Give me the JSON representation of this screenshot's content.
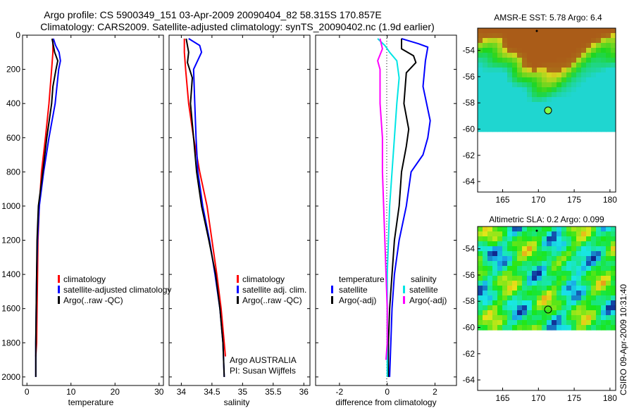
{
  "header": {
    "line1": "Argo profile: CS 5900349_151 03-Apr-2009 20090404_82 58.315S 170.857E",
    "line2": "Climatology: CARS2009. Satellite-adjusted climatology: synTS_20090402.nc (1.9d earlier)"
  },
  "credit": "CSIRO 09-Apr-2009 10:31:40",
  "colors": {
    "red": "#ff0000",
    "blue": "#0000ff",
    "black": "#000000",
    "cyan": "#00e5e5",
    "magenta": "#ff00ff"
  },
  "chart_data": [
    {
      "type": "line",
      "xlabel": "temperature",
      "xlim": [
        -1,
        31
      ],
      "ylim": [
        2050,
        0
      ],
      "xticks": [
        0,
        10,
        20,
        30
      ],
      "yticks": [
        0,
        200,
        400,
        600,
        800,
        1000,
        1200,
        1400,
        1600,
        1800,
        2000
      ],
      "legend": [
        "climatology",
        "satellite-adjusted climatology",
        "Argo(..raw -QC)"
      ],
      "series": [
        {
          "color": "red",
          "points": [
            [
              5.9,
              20
            ],
            [
              5.9,
              100
            ],
            [
              5.6,
              200
            ],
            [
              5.0,
              400
            ],
            [
              4.2,
              600
            ],
            [
              3.3,
              800
            ],
            [
              2.8,
              1000
            ],
            [
              2.5,
              1200
            ],
            [
              2.4,
              1400
            ],
            [
              2.3,
              1600
            ],
            [
              2.2,
              1800
            ],
            [
              2.0,
              1880
            ]
          ]
        },
        {
          "color": "blue",
          "points": [
            [
              6.0,
              20
            ],
            [
              6.5,
              60
            ],
            [
              7.3,
              100
            ],
            [
              7.6,
              150
            ],
            [
              7.2,
              200
            ],
            [
              6.4,
              400
            ],
            [
              5.0,
              600
            ],
            [
              3.8,
              800
            ],
            [
              2.8,
              1000
            ],
            [
              2.4,
              1200
            ],
            [
              2.2,
              1400
            ],
            [
              2.1,
              1600
            ],
            [
              2.0,
              1800
            ],
            [
              2.0,
              2000
            ]
          ]
        },
        {
          "color": "black",
          "points": [
            [
              5.7,
              20
            ],
            [
              6.3,
              100
            ],
            [
              7.0,
              150
            ],
            [
              6.6,
              200
            ],
            [
              5.9,
              300
            ],
            [
              5.6,
              400
            ],
            [
              4.5,
              600
            ],
            [
              3.6,
              800
            ],
            [
              2.6,
              1000
            ],
            [
              2.3,
              1200
            ],
            [
              2.2,
              1400
            ],
            [
              2.1,
              1600
            ],
            [
              2.0,
              1800
            ],
            [
              2.0,
              2000
            ]
          ]
        }
      ]
    },
    {
      "type": "line",
      "xlabel": "salinity",
      "xlim": [
        33.8,
        36.1
      ],
      "ylim": [
        2050,
        0
      ],
      "xticks": [
        34,
        34.5,
        35,
        35.5,
        36
      ],
      "legend": [
        "climatology",
        "satellite adj. clim.",
        "Argo(..raw -QC)"
      ],
      "annotation": [
        "Argo AUSTRALIA",
        "PI: Susan Wijffels"
      ],
      "series": [
        {
          "color": "red",
          "points": [
            [
              34.05,
              20
            ],
            [
              34.05,
              100
            ],
            [
              34.07,
              200
            ],
            [
              34.12,
              400
            ],
            [
              34.2,
              600
            ],
            [
              34.3,
              800
            ],
            [
              34.42,
              1000
            ],
            [
              34.5,
              1200
            ],
            [
              34.58,
              1400
            ],
            [
              34.65,
              1600
            ],
            [
              34.7,
              1800
            ],
            [
              34.72,
              1880
            ]
          ]
        },
        {
          "color": "blue",
          "points": [
            [
              34.12,
              20
            ],
            [
              34.3,
              60
            ],
            [
              34.33,
              100
            ],
            [
              34.2,
              200
            ],
            [
              34.22,
              400
            ],
            [
              34.24,
              600
            ],
            [
              34.27,
              800
            ],
            [
              34.35,
              1000
            ],
            [
              34.46,
              1200
            ],
            [
              34.55,
              1400
            ],
            [
              34.63,
              1600
            ],
            [
              34.68,
              1800
            ],
            [
              34.7,
              2000
            ]
          ]
        },
        {
          "color": "black",
          "points": [
            [
              34.08,
              20
            ],
            [
              34.12,
              100
            ],
            [
              34.1,
              160
            ],
            [
              34.18,
              250
            ],
            [
              34.15,
              400
            ],
            [
              34.2,
              600
            ],
            [
              34.25,
              800
            ],
            [
              34.33,
              1000
            ],
            [
              34.45,
              1200
            ],
            [
              34.56,
              1400
            ],
            [
              34.63,
              1600
            ],
            [
              34.68,
              1800
            ],
            [
              34.7,
              2000
            ]
          ]
        }
      ]
    },
    {
      "type": "line",
      "xlabel": "difference from climatology",
      "xlim": [
        -3,
        2.9
      ],
      "ylim": [
        2050,
        0
      ],
      "xticks": [
        -2,
        0,
        2
      ],
      "legend_title_left": "temperature",
      "legend_title_right": "salinity",
      "legend": [
        "satellite",
        "Argo(-adj)",
        "satellite",
        "Argo(-adj)"
      ],
      "series": [
        {
          "color": "blue",
          "points": [
            [
              0.6,
              20
            ],
            [
              1.3,
              50
            ],
            [
              1.7,
              70
            ],
            [
              1.6,
              150
            ],
            [
              1.5,
              300
            ],
            [
              1.8,
              500
            ],
            [
              1.7,
              600
            ],
            [
              1.5,
              700
            ],
            [
              1.0,
              800
            ],
            [
              0.8,
              1000
            ],
            [
              0.5,
              1200
            ],
            [
              0.3,
              1400
            ],
            [
              0.2,
              1600
            ],
            [
              0.15,
              1800
            ],
            [
              0.1,
              2000
            ]
          ]
        },
        {
          "color": "black",
          "points": [
            [
              0.6,
              20
            ],
            [
              0.6,
              80
            ],
            [
              1.1,
              120
            ],
            [
              1.2,
              160
            ],
            [
              0.8,
              220
            ],
            [
              0.7,
              400
            ],
            [
              0.9,
              550
            ],
            [
              0.8,
              650
            ],
            [
              0.6,
              800
            ],
            [
              0.5,
              1000
            ],
            [
              0.3,
              1200
            ],
            [
              0.2,
              1400
            ],
            [
              0.1,
              1600
            ],
            [
              0.05,
              1800
            ],
            [
              0.05,
              2000
            ]
          ]
        },
        {
          "color": "cyan",
          "points": [
            [
              -0.4,
              20
            ],
            [
              -0.1,
              60
            ],
            [
              0.1,
              100
            ],
            [
              0.4,
              150
            ],
            [
              0.5,
              250
            ],
            [
              0.4,
              400
            ],
            [
              0.3,
              600
            ],
            [
              0.2,
              800
            ],
            [
              0.1,
              1000
            ],
            [
              0.05,
              1200
            ],
            [
              0.0,
              1400
            ],
            [
              0.0,
              1600
            ],
            [
              0.0,
              1800
            ],
            [
              0.0,
              2000
            ]
          ]
        },
        {
          "color": "magenta",
          "points": [
            [
              -0.3,
              20
            ],
            [
              -0.2,
              80
            ],
            [
              -0.4,
              150
            ],
            [
              -0.3,
              200
            ],
            [
              -0.3,
              400
            ],
            [
              -0.2,
              600
            ],
            [
              -0.2,
              800
            ],
            [
              -0.15,
              1000
            ],
            [
              -0.1,
              1200
            ],
            [
              -0.05,
              1400
            ],
            [
              0.0,
              1600
            ],
            [
              0.0,
              1800
            ],
            [
              -0.05,
              1900
            ]
          ]
        }
      ]
    },
    {
      "type": "heatmap",
      "title": "AMSR-E SST: 5.78 Argo: 6.4",
      "xlim": [
        161.5,
        180.8
      ],
      "ylim": [
        -64.8,
        -52.3
      ],
      "xticks": [
        165,
        170,
        175,
        180
      ],
      "yticks": [
        -54,
        -56,
        -58,
        -60,
        -62,
        -64
      ],
      "argo_point": [
        170.85,
        -58.3
      ],
      "data_extent_lat": [
        -60,
        -52.3
      ]
    },
    {
      "type": "heatmap",
      "title": "Altimetric SLA: 0.2 Argo: 0.099",
      "xlim": [
        161.5,
        180.8
      ],
      "ylim": [
        -64.8,
        -52.3
      ],
      "xticks": [
        165,
        170,
        175,
        180
      ],
      "yticks": [
        -54,
        -56,
        -58,
        -60,
        -62,
        -64
      ],
      "argo_point": [
        170.85,
        -58.3
      ],
      "data_extent_lat": [
        -60,
        -52.3
      ]
    }
  ]
}
